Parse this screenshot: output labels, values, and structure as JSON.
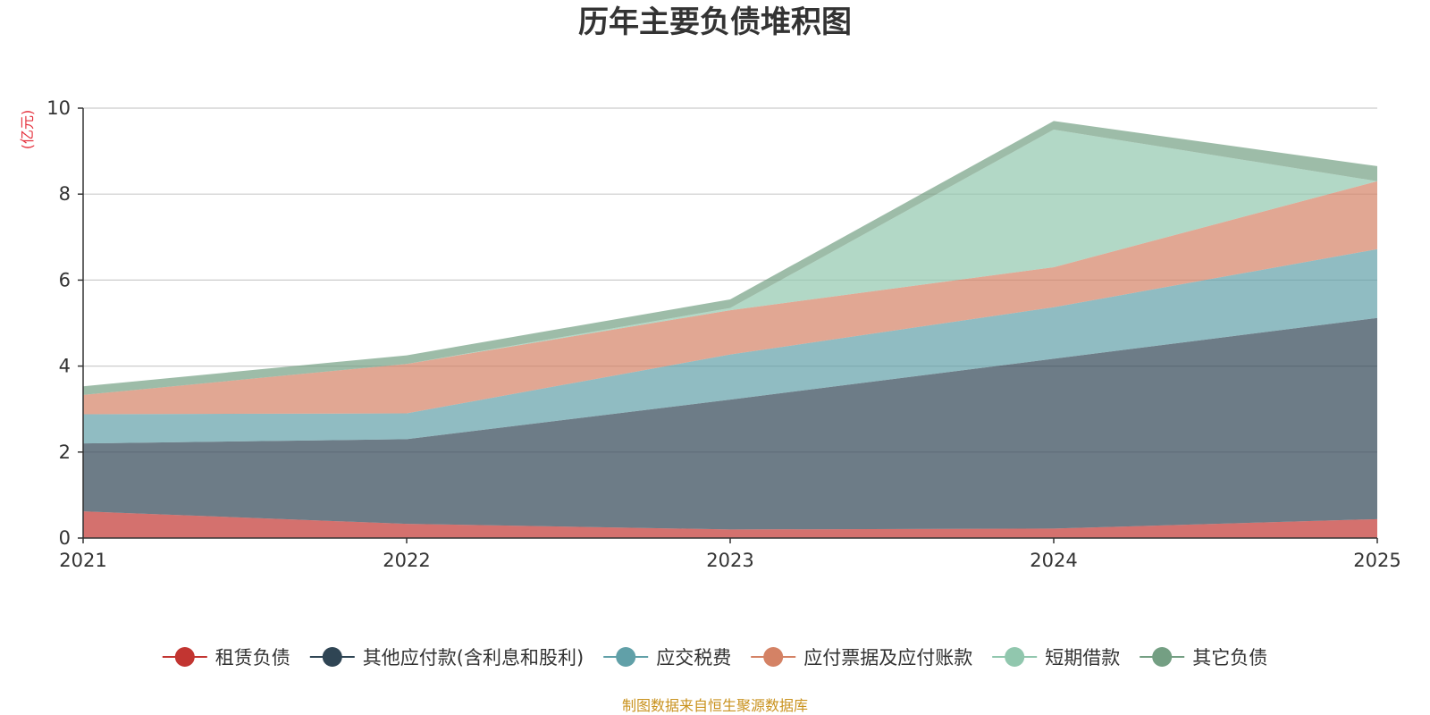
{
  "chart_data": {
    "type": "area",
    "stacked": true,
    "title": "历年主要负债堆积图",
    "ylabel": "(亿元)",
    "xlabel": "",
    "x": [
      "2021",
      "2022",
      "2023",
      "2024",
      "2025"
    ],
    "ylim": [
      0,
      10
    ],
    "yticks": [
      0,
      2,
      4,
      6,
      8,
      10
    ],
    "grid": true,
    "legend_position": "bottom",
    "series": [
      {
        "name": "租赁负债",
        "color": "#c23531",
        "values": [
          0.62,
          0.33,
          0.2,
          0.22,
          0.44
        ]
      },
      {
        "name": "其他应付款(含利息和股利)",
        "color": "#2f4554",
        "values": [
          1.58,
          1.97,
          3.02,
          3.95,
          4.68
        ]
      },
      {
        "name": "应交税费",
        "color": "#61a0a8",
        "values": [
          0.68,
          0.6,
          1.05,
          1.2,
          1.6
        ]
      },
      {
        "name": "应付票据及应付账款",
        "color": "#d48265",
        "values": [
          0.45,
          1.15,
          1.03,
          0.93,
          1.58
        ]
      },
      {
        "name": "短期借款",
        "color": "#91c7ae",
        "values": [
          0,
          0,
          0.05,
          3.2,
          0
        ]
      },
      {
        "name": "其它负债",
        "color": "#749f83",
        "values": [
          0.2,
          0.2,
          0.2,
          0.2,
          0.35
        ]
      }
    ],
    "source": "制图数据来自恒生聚源数据库"
  }
}
